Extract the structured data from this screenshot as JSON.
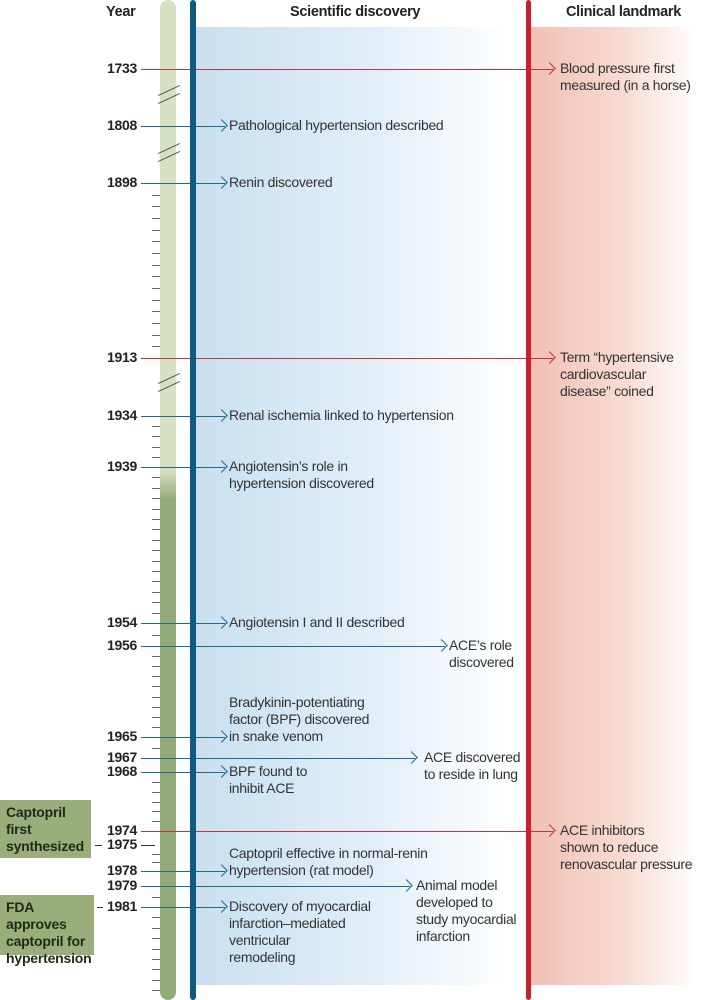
{
  "headers": {
    "year": "Year",
    "scientific": "Scientific discovery",
    "clinical": "Clinical landmark"
  },
  "colors": {
    "scientific": "#0f5a7e",
    "clinical": "#c81f2a",
    "side_box": "#9aae7c"
  },
  "events": [
    {
      "year": "1733",
      "type": "clinical",
      "text": "Blood pressure first\nmeasured (in a horse)"
    },
    {
      "year": "1808",
      "type": "scientific",
      "text": "Pathological hypertension described"
    },
    {
      "year": "1898",
      "type": "scientific",
      "text": "Renin discovered"
    },
    {
      "year": "1913",
      "type": "clinical",
      "text": "Term “hypertensive\ncardiovascular\ndisease” coined"
    },
    {
      "year": "1934",
      "type": "scientific",
      "text": "Renal ischemia linked to hypertension"
    },
    {
      "year": "1939",
      "type": "scientific",
      "text": "Angiotensin’s role in\nhypertension discovered"
    },
    {
      "year": "1954",
      "type": "scientific",
      "text": "Angiotensin I and II described"
    },
    {
      "year": "1956",
      "type": "scientific",
      "text": "ACE’s role\ndiscovered"
    },
    {
      "year": "1965",
      "type": "scientific",
      "text": "Bradykinin-potentiating\nfactor (BPF) discovered\nin snake venom"
    },
    {
      "year": "1967",
      "type": "scientific",
      "text": "ACE discovered\nto reside in lung"
    },
    {
      "year": "1968",
      "type": "scientific",
      "text": "BPF found to\ninhibit ACE"
    },
    {
      "year": "1974",
      "type": "clinical",
      "text": "ACE inhibitors\nshown to reduce\nrenovascular pressure"
    },
    {
      "year": "1975",
      "type": "side",
      "text": ""
    },
    {
      "year": "1978",
      "type": "scientific",
      "text": "Captopril effective in normal-renin\nhypertension (rat model)"
    },
    {
      "year": "1979",
      "type": "scientific",
      "text": "Animal model\ndeveloped to\nstudy myocardial\ninfarction"
    },
    {
      "year": "1981",
      "type": "scientific",
      "text": "Discovery of myocardial\ninfarction–mediated\nventricular\nremodeling"
    }
  ],
  "side_notes": [
    {
      "year": "1975",
      "text": "Captopril\nfirst\nsynthesized"
    },
    {
      "year": "1981",
      "text": "FDA approves\ncaptopril for\nhypertension"
    }
  ]
}
